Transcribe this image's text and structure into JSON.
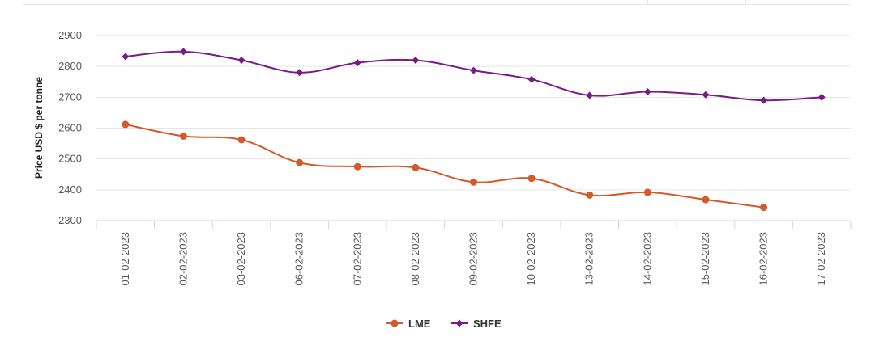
{
  "chart_data": {
    "type": "line",
    "categories": [
      "01-02-2023",
      "02-02-2023",
      "03-02-2023",
      "06-02-2023",
      "07-02-2023",
      "08-02-2023",
      "09-02-2023",
      "10-02-2023",
      "13-02-2023",
      "14-02-2023",
      "15-02-2023",
      "16-02-2023",
      "17-02-2023"
    ],
    "series": [
      {
        "name": "LME",
        "color": "#d35a2a",
        "marker": "circle",
        "values": [
          2612,
          2574,
          2562,
          2488,
          2475,
          2472,
          2425,
          2437,
          2383,
          2392,
          2368,
          2343,
          null
        ]
      },
      {
        "name": "SHFE",
        "color": "#7a1a8a",
        "marker": "diamond",
        "values": [
          2832,
          2848,
          2820,
          2780,
          2812,
          2820,
          2787,
          2758,
          2706,
          2718,
          2708,
          2690,
          2700
        ]
      }
    ],
    "y_ticks": [
      "2300",
      "2400",
      "2500",
      "2600",
      "2700",
      "2800",
      "2900"
    ],
    "title": "",
    "xlabel": "",
    "ylabel": "Price USD $ per tonne",
    "ylim": [
      2300,
      2900
    ],
    "grid": "horizontal",
    "legend_position": "bottom-center"
  }
}
